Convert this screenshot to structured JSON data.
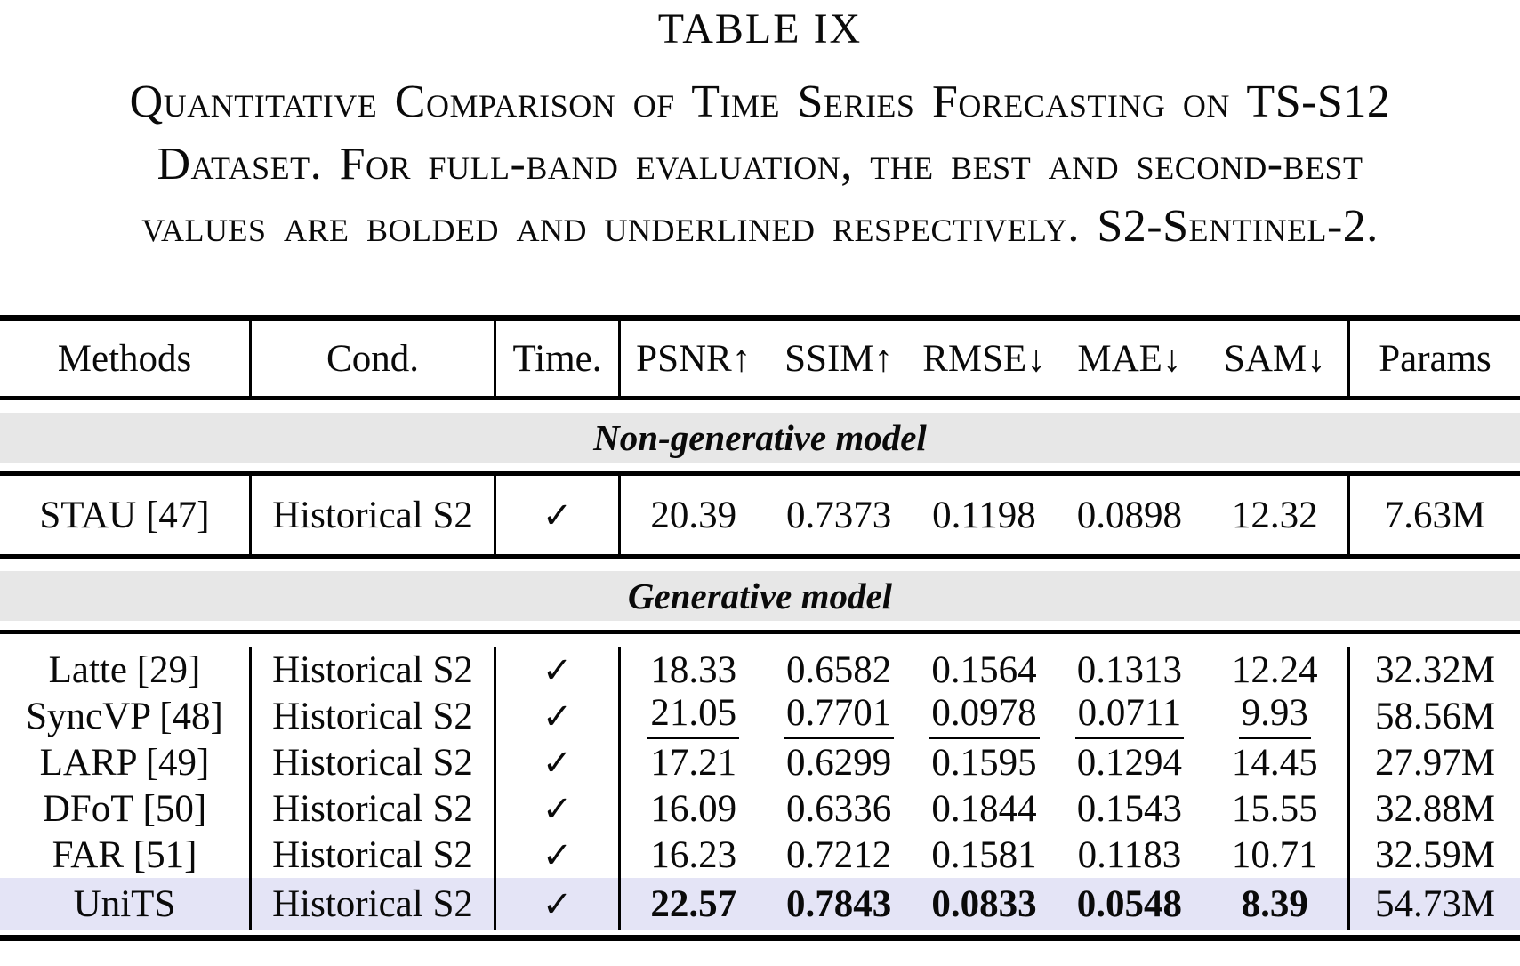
{
  "page": {
    "title": "TABLE IX",
    "caption_lines": [
      "Quantitative Comparison of Time Series Forecasting on TS-S12",
      "Dataset. For full-band evaluation, the best and second-best",
      "values are bolded and underlined respectively. S2-Sentinel-2."
    ]
  },
  "colors": {
    "section_band": "#e7e7e7",
    "highlight_row": "#e4e4f6",
    "rule": "#000000"
  },
  "table": {
    "header": {
      "methods": "Methods",
      "cond": "Cond.",
      "time": "Time.",
      "metrics": [
        "PSNR↑",
        "SSIM↑",
        "RMSE↓",
        "MAE↓",
        "SAM↓"
      ],
      "params": "Params"
    },
    "sections": [
      {
        "label": "Non-generative model",
        "rows": [
          {
            "method": "STAU [47]",
            "cond": "Historical S2",
            "time": "✓",
            "metrics": [
              "20.39",
              "0.7373",
              "0.1198",
              "0.0898",
              "12.32"
            ],
            "params": "7.63M",
            "emphasis": "none",
            "highlighted": false
          }
        ]
      },
      {
        "label": "Generative model",
        "rows": [
          {
            "method": "Latte [29]",
            "cond": "Historical S2",
            "time": "✓",
            "metrics": [
              "18.33",
              "0.6582",
              "0.1564",
              "0.1313",
              "12.24"
            ],
            "params": "32.32M",
            "emphasis": "none",
            "highlighted": false
          },
          {
            "method": "SyncVP [48]",
            "cond": "Historical S2",
            "time": "✓",
            "metrics": [
              "21.05",
              "0.7701",
              "0.0978",
              "0.0711",
              "9.93"
            ],
            "params": "58.56M",
            "emphasis": "underline-second-best",
            "highlighted": false
          },
          {
            "method": "LARP [49]",
            "cond": "Historical S2",
            "time": "✓",
            "metrics": [
              "17.21",
              "0.6299",
              "0.1595",
              "0.1294",
              "14.45"
            ],
            "params": "27.97M",
            "emphasis": "none",
            "highlighted": false
          },
          {
            "method": "DFoT [50]",
            "cond": "Historical S2",
            "time": "✓",
            "metrics": [
              "16.09",
              "0.6336",
              "0.1844",
              "0.1543",
              "15.55"
            ],
            "params": "32.88M",
            "emphasis": "none",
            "highlighted": false
          },
          {
            "method": "FAR [51]",
            "cond": "Historical S2",
            "time": "✓",
            "metrics": [
              "16.23",
              "0.7212",
              "0.1581",
              "0.1183",
              "10.71"
            ],
            "params": "32.59M",
            "emphasis": "none",
            "highlighted": false
          },
          {
            "method": "UniTS",
            "cond": "Historical S2",
            "time": "✓",
            "metrics": [
              "22.57",
              "0.7843",
              "0.0833",
              "0.0548",
              "8.39"
            ],
            "params": "54.73M",
            "emphasis": "bold-best",
            "highlighted": true
          }
        ]
      }
    ]
  }
}
